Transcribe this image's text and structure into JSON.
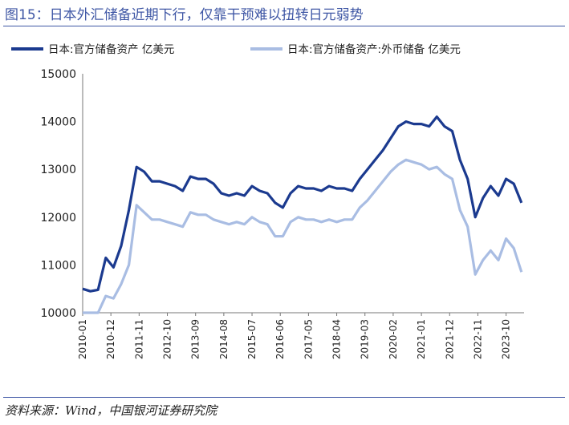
{
  "header": {
    "title": "图15：日本外汇储备近期下行，仅靠干预难以扭转日元弱势"
  },
  "footer": {
    "source": "资料来源：Wind，中国银河证券研究院"
  },
  "chart_data": {
    "type": "line",
    "title": "图15：日本外汇储备近期下行，仅靠干预难以扭转日元弱势",
    "xlabel": "",
    "ylabel": "",
    "ylim": [
      10000,
      15000
    ],
    "yticks": [
      10000,
      11000,
      12000,
      13000,
      14000,
      15000
    ],
    "x_tick_labels": [
      "2010-01",
      "2010-12",
      "2011-11",
      "2012-10",
      "2013-09",
      "2014-08",
      "2015-07",
      "2016-06",
      "2017-05",
      "2018-04",
      "2019-03",
      "2020-02",
      "2021-01",
      "2021-12",
      "2022-11",
      "2023-10"
    ],
    "legend_position": "top",
    "grid": false,
    "colors": {
      "primary": "#1b3a8f",
      "secondary": "#a9bde3",
      "accent": "#3f57a5"
    },
    "x": [
      "2010-01",
      "2010-04",
      "2010-07",
      "2010-10",
      "2011-01",
      "2011-04",
      "2011-07",
      "2011-10",
      "2012-01",
      "2012-04",
      "2012-07",
      "2012-10",
      "2013-01",
      "2013-04",
      "2013-07",
      "2013-10",
      "2014-01",
      "2014-04",
      "2014-07",
      "2014-10",
      "2015-01",
      "2015-04",
      "2015-07",
      "2015-10",
      "2016-01",
      "2016-04",
      "2016-07",
      "2016-10",
      "2017-01",
      "2017-04",
      "2017-07",
      "2017-10",
      "2018-01",
      "2018-04",
      "2018-07",
      "2018-10",
      "2019-01",
      "2019-04",
      "2019-07",
      "2019-10",
      "2020-01",
      "2020-04",
      "2020-07",
      "2020-10",
      "2021-01",
      "2021-04",
      "2021-07",
      "2021-10",
      "2022-01",
      "2022-04",
      "2022-07",
      "2022-10",
      "2023-01",
      "2023-04",
      "2023-07",
      "2023-10",
      "2024-01",
      "2024-04"
    ],
    "series": [
      {
        "name": "日本:官方储备资产 亿美元",
        "values": [
          10500,
          10450,
          10480,
          11150,
          10950,
          11400,
          12150,
          13050,
          12950,
          12750,
          12750,
          12700,
          12650,
          12550,
          12850,
          12800,
          12800,
          12700,
          12500,
          12450,
          12500,
          12450,
          12650,
          12550,
          12500,
          12300,
          12200,
          12500,
          12650,
          12600,
          12600,
          12550,
          12650,
          12600,
          12600,
          12550,
          12800,
          13000,
          13200,
          13400,
          13650,
          13900,
          14000,
          13950,
          13950,
          13900,
          14100,
          13900,
          13800,
          13200,
          12800,
          12000,
          12400,
          12650,
          12450,
          12800,
          12700,
          12300
        ]
      },
      {
        "name": "日本:官方储备资产:外币储备 亿美元",
        "values": [
          10000,
          10000,
          10000,
          10350,
          10300,
          10600,
          11000,
          12250,
          12100,
          11950,
          11950,
          11900,
          11850,
          11800,
          12100,
          12050,
          12050,
          11950,
          11900,
          11850,
          11900,
          11850,
          12000,
          11900,
          11850,
          11600,
          11600,
          11900,
          12000,
          11950,
          11950,
          11900,
          11950,
          11900,
          11950,
          11950,
          12200,
          12350,
          12550,
          12750,
          12950,
          13100,
          13200,
          13150,
          13100,
          13000,
          13050,
          12900,
          12800,
          12150,
          11800,
          10800,
          11100,
          11300,
          11100,
          11550,
          11350,
          10850
        ]
      }
    ]
  }
}
